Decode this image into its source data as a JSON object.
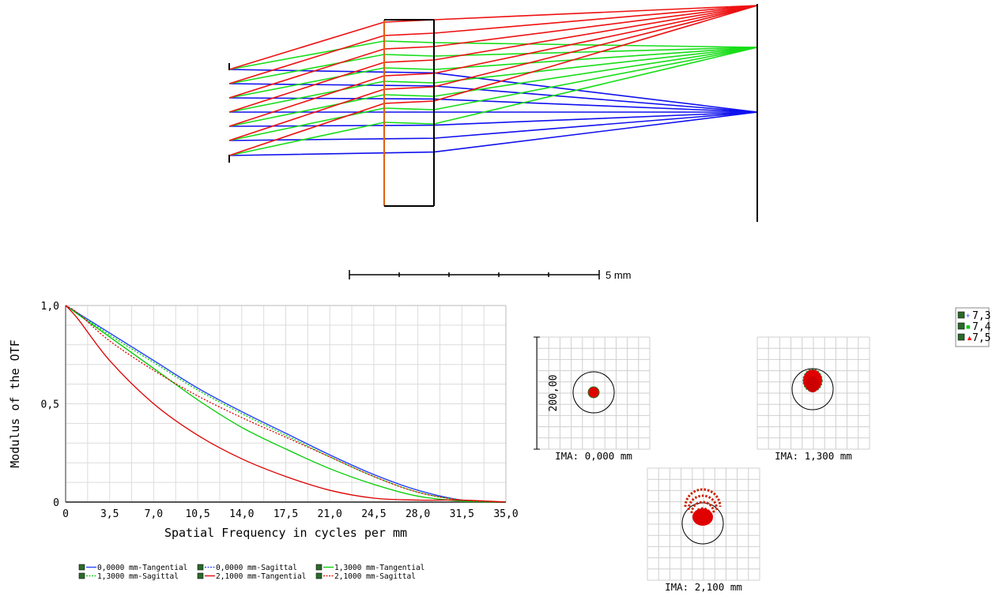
{
  "layout_scale": {
    "label": "5 mm"
  },
  "mtf_chart": {
    "ylabel": "Modulus of the OTF",
    "xlabel": "Spatial Frequency in cycles per mm",
    "x_ticks": [
      "0",
      "3,5",
      "7,0",
      "10,5",
      "14,0",
      "17,5",
      "21,0",
      "24,5",
      "28,0",
      "31,5",
      "35,0"
    ],
    "y_ticks": [
      "0",
      "0,5",
      "1,0"
    ]
  },
  "spot_diagram": {
    "scale_label": "200,00",
    "fields": [
      {
        "label": "IMA: 0,000 mm"
      },
      {
        "label": "IMA: 1,300 mm"
      },
      {
        "label": "IMA: 2,100 mm"
      }
    ],
    "legend": [
      {
        "label": "7,3",
        "color": "#1e3cff"
      },
      {
        "label": "7,4",
        "color": "#00cc00"
      },
      {
        "label": "7,5",
        "color": "#ff0000"
      }
    ]
  },
  "chart_data": [
    {
      "type": "line",
      "xlabel": "Spatial Frequency in cycles per mm",
      "ylabel": "Modulus of the OTF",
      "xlim": [
        0,
        35
      ],
      "ylim": [
        0,
        1
      ],
      "grid": true,
      "legend_position": "bottom",
      "series": [
        {
          "name": "0,0000 mm-Tangential",
          "color": "#2040ff",
          "dash": "solid",
          "x": [
            0,
            3.5,
            7,
            10.5,
            14,
            17.5,
            21,
            24.5,
            28,
            31.5,
            35
          ],
          "y": [
            1.0,
            0.86,
            0.72,
            0.58,
            0.46,
            0.35,
            0.24,
            0.14,
            0.06,
            0.01,
            0.0
          ]
        },
        {
          "name": "0,0000 mm-Sagittal",
          "color": "#2040ff",
          "dash": "dotted",
          "x": [
            0,
            3.5,
            7,
            10.5,
            14,
            17.5,
            21,
            24.5,
            28,
            31.5,
            35
          ],
          "y": [
            1.0,
            0.86,
            0.72,
            0.58,
            0.46,
            0.35,
            0.24,
            0.14,
            0.06,
            0.01,
            0.0
          ]
        },
        {
          "name": "1,3000 mm-Tangential",
          "color": "#00cc00",
          "dash": "solid",
          "x": [
            0,
            3.5,
            7,
            10.5,
            14,
            17.5,
            21,
            24.5,
            28,
            31.5,
            35
          ],
          "y": [
            1.0,
            0.84,
            0.68,
            0.52,
            0.38,
            0.27,
            0.17,
            0.09,
            0.03,
            0.005,
            0.0
          ]
        },
        {
          "name": "1,3000 mm-Sagittal",
          "color": "#00cc00",
          "dash": "dotted",
          "x": [
            0,
            3.5,
            7,
            10.5,
            14,
            17.5,
            21,
            24.5,
            28,
            31.5,
            35
          ],
          "y": [
            1.0,
            0.85,
            0.71,
            0.57,
            0.45,
            0.34,
            0.23,
            0.13,
            0.05,
            0.01,
            0.0
          ]
        },
        {
          "name": "2,1000 mm-Tangential",
          "color": "#dd0000",
          "dash": "solid",
          "x": [
            0,
            1,
            3.5,
            7,
            10.5,
            14,
            17.5,
            21,
            24.5,
            28,
            31.5,
            35
          ],
          "y": [
            1.0,
            0.93,
            0.72,
            0.5,
            0.34,
            0.22,
            0.13,
            0.06,
            0.02,
            0.01,
            0.01,
            0.0
          ]
        },
        {
          "name": "2,1000 mm-Sagittal",
          "color": "#dd0000",
          "dash": "dotted",
          "x": [
            0,
            1,
            3.5,
            7,
            10.5,
            14,
            17.5,
            21,
            24.5,
            28,
            31.5,
            35
          ],
          "y": [
            1.0,
            0.96,
            0.82,
            0.67,
            0.54,
            0.43,
            0.33,
            0.23,
            0.13,
            0.05,
            0.01,
            0.0
          ]
        }
      ]
    }
  ]
}
